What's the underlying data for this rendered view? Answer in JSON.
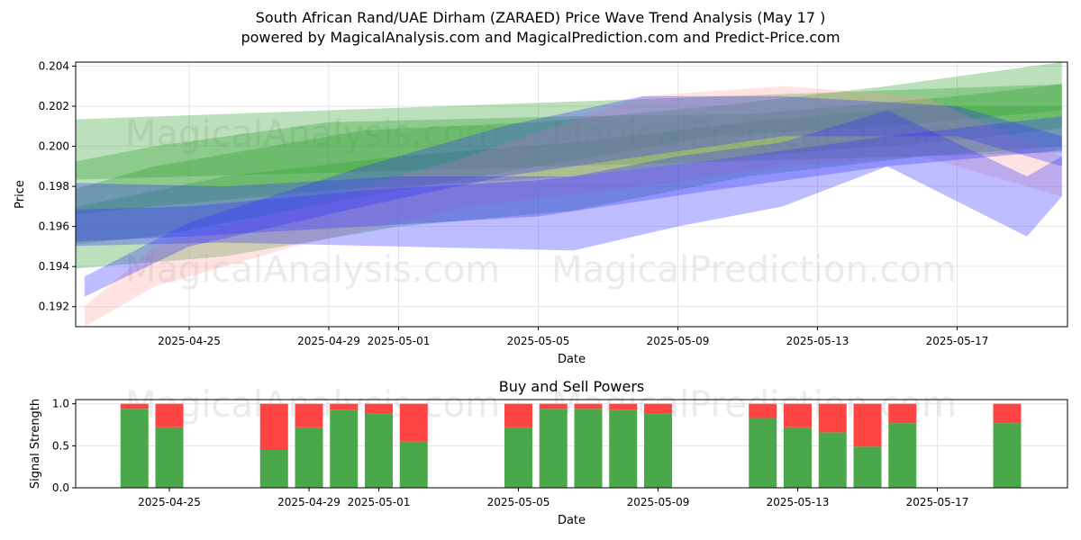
{
  "page": {
    "title_line1": "South African Rand/UAE Dirham (ZARAED) Price Wave Trend Analysis (May 17 )",
    "title_line2": "powered by MagicalAnalysis.com and MagicalPrediction.com and Predict-Price.com"
  },
  "watermarks": {
    "left": "MagicalAnalysis.com",
    "right": "MagicalPrediction.com"
  },
  "colors": {
    "red_band": "#ff9999",
    "green_band": "#2ca02c",
    "blue_band": "#3333ff",
    "buy": "#4aa84a",
    "sell": "#ff4444"
  },
  "chart_data": [
    {
      "type": "area",
      "title": "",
      "xlabel": "Date",
      "ylabel": "Price",
      "x_range": [
        "2025-04-21",
        "2025-05-21"
      ],
      "ylim": [
        0.191,
        0.2042
      ],
      "yticks": [
        0.192,
        0.194,
        0.196,
        0.198,
        0.2,
        0.202,
        0.204
      ],
      "ytick_labels": [
        "0.192",
        "0.194",
        "0.196",
        "0.198",
        "0.200",
        "0.202",
        "0.204"
      ],
      "xticks": [
        "2025-04-25",
        "2025-04-29",
        "2025-05-01",
        "2025-05-05",
        "2025-05-09",
        "2025-05-13",
        "2025-05-17"
      ],
      "grid": true,
      "series": [
        {
          "color": "green",
          "x": [
            "2025-04-21",
            "2025-05-20"
          ],
          "lower": [
            0.1983,
            0.1997
          ],
          "upper": [
            0.2013,
            0.2031
          ]
        },
        {
          "color": "green",
          "x": [
            "2025-04-21",
            "2025-04-24",
            "2025-04-29",
            "2025-05-06",
            "2025-05-11",
            "2025-05-17",
            "2025-05-20"
          ],
          "lower": [
            0.1965,
            0.197,
            0.1978,
            0.1985,
            0.1995,
            0.2003,
            0.2009
          ],
          "upper": [
            0.199,
            0.2,
            0.2012,
            0.2015,
            0.2016,
            0.2025,
            0.2031
          ]
        },
        {
          "color": "green",
          "x": [
            "2025-04-21",
            "2025-04-26",
            "2025-05-01",
            "2025-05-06",
            "2025-05-11",
            "2025-05-16",
            "2025-05-20"
          ],
          "lower": [
            0.1938,
            0.1945,
            0.196,
            0.1968,
            0.1985,
            0.1995,
            0.2
          ],
          "upper": [
            0.1967,
            0.1985,
            0.1995,
            0.2002,
            0.2012,
            0.202,
            0.202
          ]
        },
        {
          "color": "green",
          "x": [
            "2025-04-21",
            "2025-04-24",
            "2025-04-30",
            "2025-05-05",
            "2025-05-10",
            "2025-05-15",
            "2025-05-20"
          ],
          "lower": [
            0.195,
            0.1955,
            0.1975,
            0.199,
            0.2005,
            0.201,
            0.2018
          ],
          "upper": [
            0.1975,
            0.199,
            0.2008,
            0.2012,
            0.202,
            0.203,
            0.2042
          ]
        },
        {
          "color": "red",
          "x": [
            "2025-04-22",
            "2025-04-24",
            "2025-04-28",
            "2025-05-03",
            "2025-05-08",
            "2025-05-12",
            "2025-05-16",
            "2025-05-20"
          ],
          "lower": [
            0.191,
            0.193,
            0.195,
            0.197,
            0.198,
            0.199,
            0.1995,
            0.1975
          ],
          "upper": [
            0.192,
            0.195,
            0.197,
            0.1995,
            0.2025,
            0.203,
            0.2025,
            0.1995
          ]
        },
        {
          "color": "blue",
          "x": [
            "2025-04-21",
            "2025-04-25",
            "2025-04-30",
            "2025-05-05",
            "2025-05-10",
            "2025-05-15",
            "2025-05-20"
          ],
          "lower": [
            0.1952,
            0.1955,
            0.196,
            0.1965,
            0.1978,
            0.199,
            0.1998
          ],
          "upper": [
            0.1968,
            0.197,
            0.1978,
            0.1983,
            0.1993,
            0.2005,
            0.2015
          ]
        },
        {
          "color": "blue",
          "x": [
            "2025-04-21",
            "2025-04-26",
            "2025-05-01",
            "2025-05-06",
            "2025-05-09",
            "2025-05-12",
            "2025-05-15",
            "2025-05-19",
            "2025-05-20"
          ],
          "lower": [
            0.195,
            0.1952,
            0.195,
            0.1948,
            0.196,
            0.197,
            0.199,
            0.1955,
            0.1975
          ],
          "upper": [
            0.1982,
            0.198,
            0.1985,
            0.1985,
            0.1995,
            0.2002,
            0.2018,
            0.1985,
            0.1995
          ]
        },
        {
          "color": "blue",
          "x": [
            "2025-04-22",
            "2025-04-25",
            "2025-04-30",
            "2025-05-04",
            "2025-05-08",
            "2025-05-12",
            "2025-05-17",
            "2025-05-20"
          ],
          "lower": [
            0.1925,
            0.195,
            0.197,
            0.1985,
            0.1995,
            0.2005,
            0.2005,
            0.199
          ],
          "upper": [
            0.1935,
            0.1962,
            0.199,
            0.201,
            0.2025,
            0.2025,
            0.202,
            0.2005
          ]
        }
      ]
    },
    {
      "type": "bar",
      "title": "Buy and Sell Powers",
      "xlabel": "Date",
      "ylabel": "Signal Strength",
      "ylim": [
        0.0,
        1.05
      ],
      "yticks": [
        0.0,
        0.5,
        1.0
      ],
      "ytick_labels": [
        "0.0",
        "0.5",
        "1.0"
      ],
      "xticks": [
        "2025-04-25",
        "2025-04-29",
        "2025-05-01",
        "2025-05-05",
        "2025-05-09",
        "2025-05-13",
        "2025-05-17"
      ],
      "grid": true,
      "categories": [
        "2025-04-24",
        "2025-04-25",
        "2025-04-28",
        "2025-04-29",
        "2025-04-30",
        "2025-05-01",
        "2025-05-02",
        "2025-05-05",
        "2025-05-06",
        "2025-05-07",
        "2025-05-08",
        "2025-05-09",
        "2025-05-12",
        "2025-05-13",
        "2025-05-14",
        "2025-05-15",
        "2025-05-16",
        "2025-05-19"
      ],
      "series": [
        {
          "name": "Buy",
          "values": [
            0.94,
            0.72,
            0.45,
            0.72,
            0.93,
            0.88,
            0.55,
            0.72,
            0.94,
            0.94,
            0.93,
            0.88,
            0.83,
            0.72,
            0.66,
            0.49,
            0.77,
            0.77
          ]
        },
        {
          "name": "Sell",
          "values": [
            0.06,
            0.28,
            0.55,
            0.28,
            0.07,
            0.12,
            0.45,
            0.28,
            0.06,
            0.06,
            0.07,
            0.12,
            0.17,
            0.28,
            0.34,
            0.51,
            0.23,
            0.23
          ]
        }
      ]
    }
  ]
}
